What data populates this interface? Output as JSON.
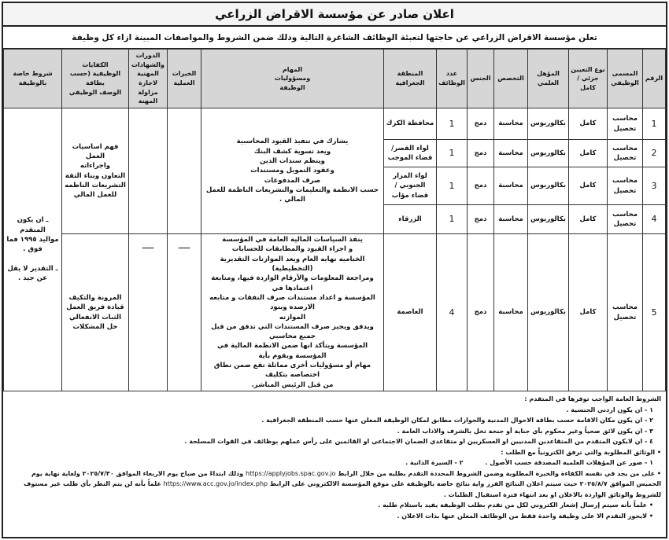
{
  "title": "اعلان صادر عن مؤسسة الاقراض الزراعي",
  "subtitle": "تعلن مؤسسة الاقراض الزراعي عن حاجتها لتعبئة الوظائف الشاغرة التالية وذلك ضمن الشروط والمواصفات المبينة ازاء كل وظيفة",
  "headers": [
    "الرقم",
    "المسمى الوظيفي",
    "نوع التعيين جزئي / كامل",
    "المؤهل العلمي",
    "التخصص",
    "الجنس",
    "عدد الوظائف",
    "المنطقة الجغرافية",
    "المهام\nومسؤوليات\nالوظيفة",
    "الخبرات العملية",
    "الدورات\nوالشهادات\nالمهنية لاجازة\nمزاولة المهنة",
    "الكفايات\nالوظيفية (حسب بطاقة\nالوصف الوظيفي",
    "شروط خاصة\nبالوظيفة"
  ],
  "rows": [
    {
      "no": "1",
      "title": "محاسب تحصيل",
      "type": "كامل",
      "degree": "بكالوريوس",
      "major": "محاسبة",
      "gender": "دمج",
      "count": "1",
      "region": "محافظة الكرك"
    },
    {
      "no": "2",
      "title": "محاسب تحصيل",
      "type": "كامل",
      "degree": "بكالوريوس",
      "major": "محاسبة",
      "gender": "دمج",
      "count": "1",
      "region": "لواء القصر/ قضاء الموجب"
    },
    {
      "no": "3",
      "title": "محاسب تحصيل",
      "type": "كامل",
      "degree": "بكالوريوس",
      "major": "محاسبة",
      "gender": "دمج",
      "count": "1",
      "region": "لواء المزار الجنوبي / قضاء مؤاب"
    },
    {
      "no": "4",
      "title": "محاسب تحصيل",
      "type": "كامل",
      "degree": "بكالوريوس",
      "major": "محاسبة",
      "gender": "دمج",
      "count": "1",
      "region": "الزرقاء"
    },
    {
      "no": "5",
      "title": "محاسب تحصيل",
      "type": "كامل",
      "degree": "بكالوريوس",
      "major": "محاسبة",
      "gender": "دمج",
      "count": "4",
      "region": "العاصمة"
    }
  ],
  "tasks_1_4": "يشارك في تنفيذ القيود المحاسبية\nويعد تسوية كشف البنك\nوينظم سندات الدين\nوعقود التمويل ومستندات\nصرف المدفوعات\nحسب الانظمة والتعليمات والتشريعات الناظمة للعمل المالي .",
  "tasks_5": "ينفذ السياسات المالية العامة في المؤسسة\nو اجراء القيود والمطابقات للحسابات\nالختاميه نهايه العام ويعد الموازنات التقديرية (التخطيطية)\nومراجعة المعلومات والأرقام الواردة فيها، ومتابعة اعتمادها في\nالمؤسسة و اعداد مستندات صرف النفقات و متابعه الارصده وبنود\nالموازنه\nويدقق ويجيز صرف المستندات التي تدفق من قبل جميع محاسبي\nالمؤسسة ويتأكد انها ضمن الانظمة المالية في المؤسسة ويقوم بأية\nمهام أو مسؤوليات أخرى مماثلة تقع ضمن نطاق اختصاصه بتكليف\nمن قبل الرئيس المباشر.",
  "dash": "ـــــ",
  "competencies_1_4": "فهم اساسيات العمل\nواجراءاته\nالتعاون وبناء الثقة\nالتشريعات الناظمه\nللعمل المالي",
  "competencies_5": "المرونة والتكيف\nقيادة فريق العمل\nالثبات الانفعالي\nحل المشكلات",
  "special": "ـ ان يكون المتقدم\nمواليد ١٩٩٥ فما\nفوق .\n\nـ التقدير لا يقل\nعن جيد .",
  "notes": {
    "heading": "الشروط العامة الواجب توفرها في المتقدم :",
    "items": [
      "١ - ان يكون اردني الجنسية .",
      "٢ - ان يكون مكان الاقامة حسب بطاقة الاحوال المدنية والجوازات مطابق لمكان الوظيفة المعلن عنها حسب المنطقة الجغرافية .",
      "٣ - ان يكون لائق صحياً وغير محكوم بأي جناية أو جنحة تخل بالشرف والاداب العامة .",
      "٤ - ان لايكون المتقدم من المتقاعدين المدنيين او العسكريين او متقاعدي الضمان الاجتماعي او القائمين على رأس عملهم بوظائف في القوات المسلحة ."
    ],
    "docs_heading": "• الوثائق المطلوبة والتي ترفق الكترونياً مع الطلب :",
    "docs": "١ - صور عن المؤهلات العلمية المصدقة حسب الأصول .          ٢ - السيرة الذاتية .",
    "apply_a": "• على من يجد في نفسه الكفاءة والخبرة المطلوبة وضمن الشروط المحددة التقدم بطلبه من خلال الرابط",
    "apply_url1": "https://applyjobs.spac.gov.jo",
    "apply_b": "وذلك ابتداءً من صباح يوم الاربعاء الموافق ٢٠٢٥/٧/٣٠ ولغاية نهاية يوم الخميس الموافق ٢٠٢٥/٨/٧ حيث سيتم اعلان النتائج الفرز واية نتائج خاصة بالوظيفة على موقع المؤسسة الالكتروني على الرابط",
    "apply_url2": "https://www.acc.gov.jo/index.php",
    "apply_c": "علماً بأنه لن يتم النظر بأي طلب غير مستوف للشروط والوثائق الواردة بالاعلان او بعد انتهاء فترة استقبال الطلبات .",
    "bullet1": "• علماً بأنه سيتم إرسال إشعار الكتروني لكل من تقدم بطلب الوظيفة يفيد باستلام طلبه .",
    "bullet2": "• لايجوز التقدم الا على وظيفة واحدة فقط من الوظائف المعلن عنها بذات الاعلان ."
  }
}
